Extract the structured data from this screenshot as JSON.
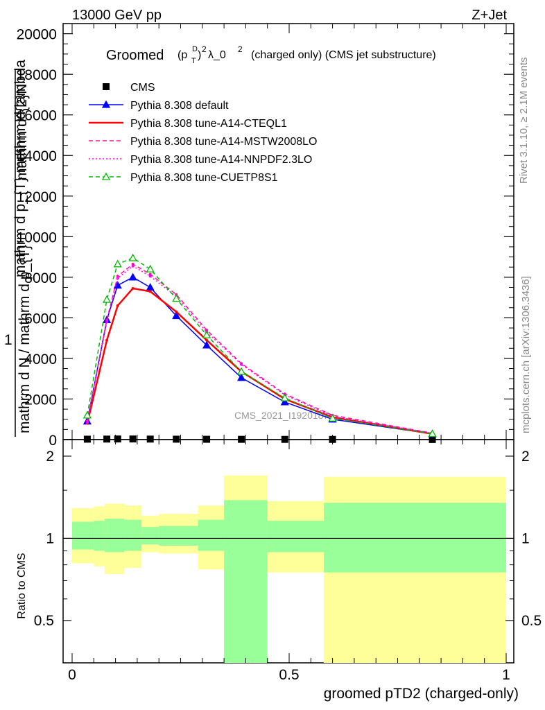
{
  "header": {
    "energy": "13000 GeV pp",
    "process": "Z+Jet"
  },
  "plot_title": {
    "prefix": "Groomed",
    "formula": "(p",
    "sub": "T",
    "sup": "D",
    "suffix": ")",
    "pow": "2",
    "lambda": "λ_0",
    "lambda_pow": "2",
    "rest": "(charged only) (CMS jet substructure)"
  },
  "side_labels": {
    "rivet": "Rivet 3.1.10, ≥ 2.1M events",
    "mcplots": "mcplots.cern.ch [arXiv:1306.3436]"
  },
  "watermark": "CMS_2021_I1920187",
  "ylabel": {
    "top_fragment": "mathrm d^{2}N",
    "numerator": "mathrm d^{2}N",
    "middle": "mathrm d p_{T} mathrm d lambda",
    "one": "1",
    "denominator": "mathrm d N / mathrm d p_{T}"
  },
  "ratio_ylabel": "Ratio to CMS",
  "xlabel": "groomed pTD2 (charged-only)",
  "legend": [
    {
      "label": "CMS",
      "color": "#000000",
      "style": "square"
    },
    {
      "label": "Pythia 8.308 default",
      "color": "#0000ff",
      "style": "solid-triangle"
    },
    {
      "label": "Pythia 8.308 tune-A14-CTEQL1",
      "color": "#ff0000",
      "style": "solid"
    },
    {
      "label": "Pythia 8.308 tune-A14-MSTW2008LO",
      "color": "#ff1493",
      "style": "dashed"
    },
    {
      "label": "Pythia 8.308 tune-A14-NNPDF2.3LO",
      "color": "#ff00ff",
      "style": "dotted"
    },
    {
      "label": "Pythia 8.308 tune-CUETP8S1",
      "color": "#00bb00",
      "style": "dashed-open-triangle"
    }
  ],
  "chart_data": [
    {
      "type": "line",
      "panel": "main",
      "x": [
        0.035,
        0.08,
        0.105,
        0.14,
        0.18,
        0.24,
        0.31,
        0.39,
        0.49,
        0.6,
        0.83
      ],
      "ylim": [
        0,
        20500
      ],
      "xlim": [
        -0.02,
        1.0
      ],
      "yticks": [
        0,
        2000,
        4000,
        6000,
        8000,
        10000,
        12000,
        14000,
        16000,
        18000,
        20000
      ],
      "ytick_labels": [
        "0",
        "2000",
        "4000",
        "6000",
        "8000",
        "10000",
        "12000",
        "14000",
        "16000",
        "18000",
        "20000"
      ],
      "series": [
        {
          "name": "CMS",
          "values": [
            20,
            25,
            30,
            30,
            25,
            20,
            15,
            12,
            10,
            8,
            5
          ]
        },
        {
          "name": "Pythia 8.308 default",
          "values": [
            900,
            5900,
            7600,
            8000,
            7500,
            6100,
            4650,
            3050,
            1850,
            1000,
            280
          ]
        },
        {
          "name": "Pythia 8.308 tune-A14-CTEQL1",
          "values": [
            800,
            4900,
            6600,
            7450,
            7300,
            6300,
            4900,
            3350,
            2000,
            1100,
            280
          ]
        },
        {
          "name": "Pythia 8.308 tune-A14-MSTW2008LO",
          "values": [
            900,
            5900,
            8050,
            8650,
            8150,
            7150,
            5400,
            3750,
            2250,
            1200,
            320
          ]
        },
        {
          "name": "Pythia 8.308 tune-A14-NNPDF2.3LO",
          "values": [
            850,
            5800,
            7950,
            8550,
            8050,
            7050,
            5300,
            3700,
            2200,
            1150,
            310
          ]
        },
        {
          "name": "Pythia 8.308 tune-CUETP8S1",
          "values": [
            1200,
            6900,
            8650,
            8950,
            8400,
            6950,
            5150,
            3350,
            2050,
            1050,
            290
          ]
        }
      ]
    },
    {
      "type": "area",
      "panel": "ratio",
      "ylim": [
        0.35,
        2.3
      ],
      "yticks": [
        0.5,
        1,
        2
      ],
      "ytick_labels": [
        "0.5",
        "1",
        "2"
      ],
      "xticks": [
        0,
        0.5,
        1
      ],
      "xtick_labels": [
        "0",
        "0.5",
        "1"
      ],
      "bins": [
        {
          "x0": 0.0,
          "x1": 0.05,
          "green": [
            0.91,
            1.15
          ],
          "yellow": [
            0.81,
            1.29
          ]
        },
        {
          "x0": 0.05,
          "x1": 0.075,
          "green": [
            0.9,
            1.16
          ],
          "yellow": [
            0.79,
            1.31
          ]
        },
        {
          "x0": 0.075,
          "x1": 0.12,
          "green": [
            0.89,
            1.18
          ],
          "yellow": [
            0.74,
            1.34
          ]
        },
        {
          "x0": 0.12,
          "x1": 0.16,
          "green": [
            0.9,
            1.17
          ],
          "yellow": [
            0.78,
            1.32
          ]
        },
        {
          "x0": 0.16,
          "x1": 0.2,
          "green": [
            0.95,
            1.1
          ],
          "yellow": [
            0.89,
            1.21
          ]
        },
        {
          "x0": 0.2,
          "x1": 0.29,
          "green": [
            0.94,
            1.11
          ],
          "yellow": [
            0.88,
            1.23
          ]
        },
        {
          "x0": 0.29,
          "x1": 0.35,
          "green": [
            0.9,
            1.17
          ],
          "yellow": [
            0.77,
            1.32
          ]
        },
        {
          "x0": 0.35,
          "x1": 0.45,
          "green": [
            0.35,
            1.38
          ],
          "yellow": [
            0.35,
            1.7
          ]
        },
        {
          "x0": 0.45,
          "x1": 0.58,
          "green": [
            0.89,
            1.16
          ],
          "yellow": [
            0.75,
            1.37
          ]
        },
        {
          "x0": 0.58,
          "x1": 1.0,
          "green": [
            0.75,
            1.35
          ],
          "yellow": [
            0.35,
            1.68
          ]
        }
      ]
    }
  ]
}
